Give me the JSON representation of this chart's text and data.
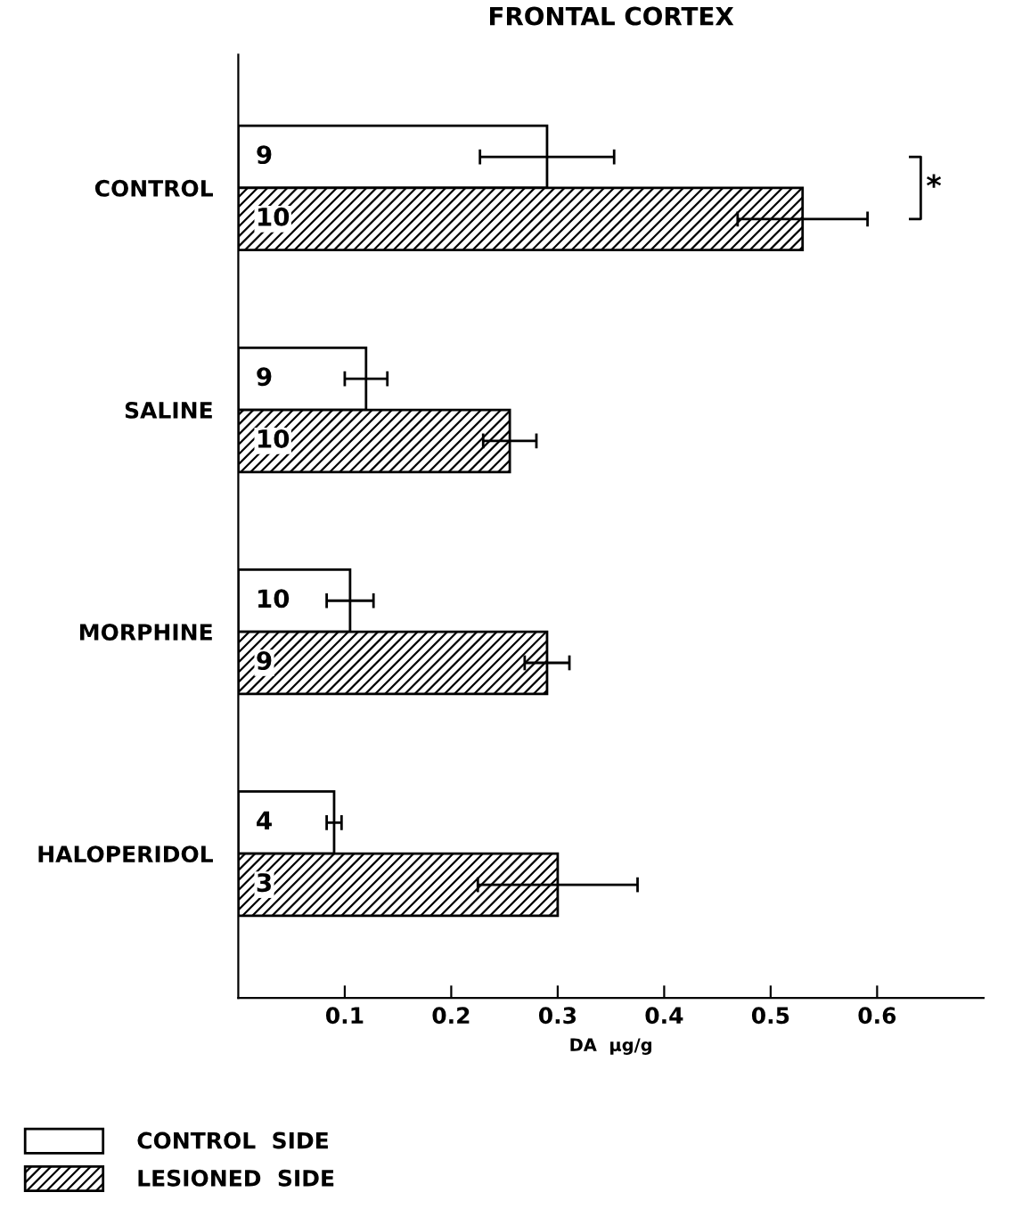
{
  "chart_data": {
    "type": "bar",
    "orientation": "horizontal",
    "title": "FRONTAL CORTEX",
    "xlabel": "DA  µg/g",
    "categories": [
      "CONTROL",
      "SALINE",
      "MORPHINE",
      "HALOPERIDOL"
    ],
    "series": [
      {
        "name": "CONTROL  SIDE",
        "color": "#ffffff",
        "values": [
          0.29,
          0.12,
          0.105,
          0.09
        ],
        "errors": [
          0.063,
          0.02,
          0.022,
          0.007
        ]
      },
      {
        "name": "LESIONED  SIDE",
        "color": "#000000",
        "values": [
          0.53,
          0.255,
          0.29,
          0.3
        ],
        "errors": [
          0.061,
          0.025,
          0.021,
          0.075
        ]
      }
    ],
    "xlim": [
      0,
      0.7
    ],
    "xticks": [
      0.1,
      0.2,
      0.3,
      0.4,
      0.5,
      0.6
    ],
    "annotations": [
      "*",
      "9",
      "10",
      "9",
      "10",
      "10",
      "9",
      "4",
      "3"
    ],
    "legend": "bottom left",
    "grid": false
  }
}
